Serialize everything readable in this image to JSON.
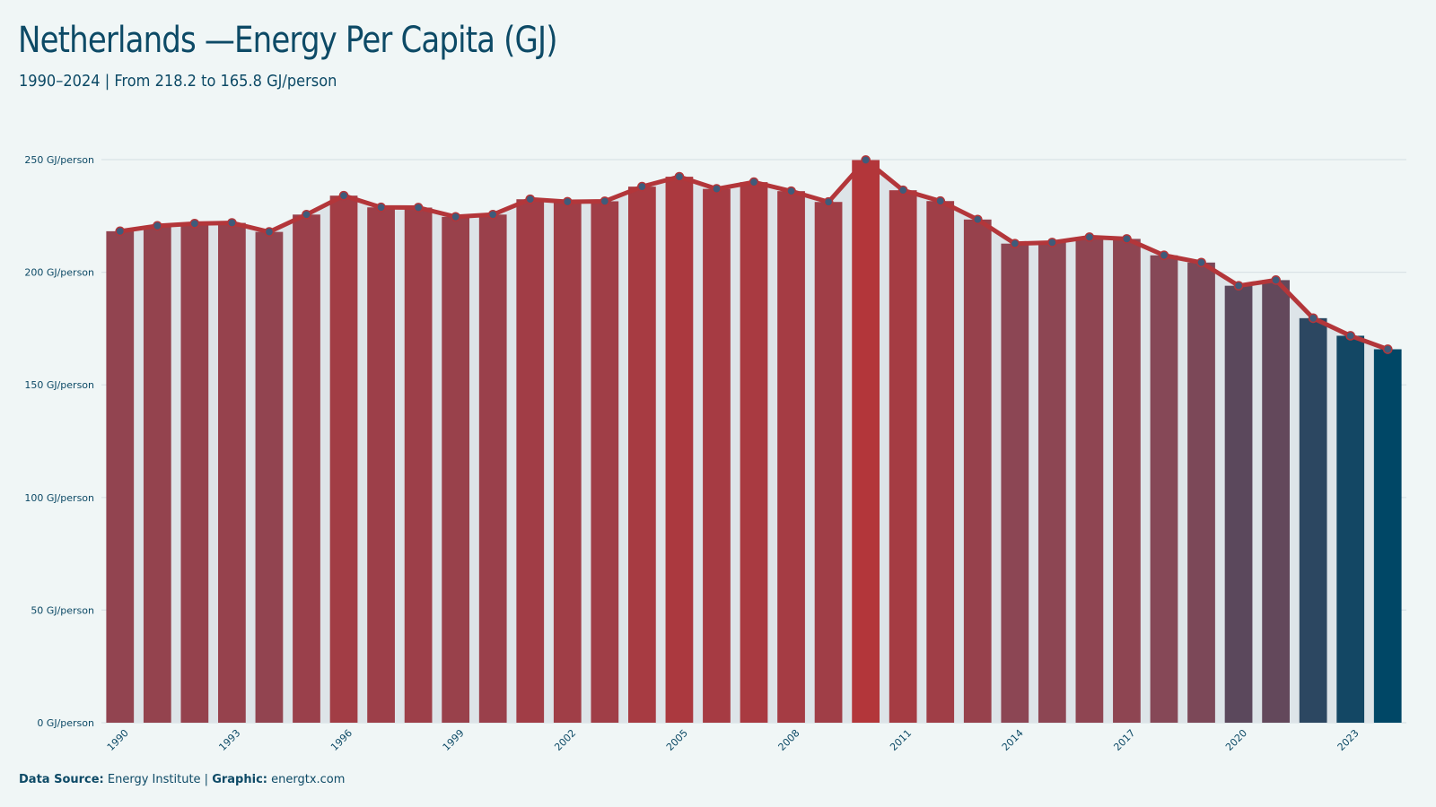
{
  "header": {
    "title": "Netherlands —Energy Per Capita (GJ)",
    "subtitle": "1990–2024 | From 218.2 to 165.8 GJ/person"
  },
  "footer": {
    "source_label": "Data Source:",
    "source_value": "Energy Institute |",
    "graphic_label": "Graphic:",
    "graphic_value": "energtx.com"
  },
  "colors": {
    "background": "#f0f6f6",
    "line": "#b3363a",
    "marker": "#3f5b7a",
    "bar_high": "#b3363a",
    "bar_low": "#004766",
    "bar_mid": "#874857",
    "text": "#0d4a66",
    "grid": "#d9e2e6",
    "band": "#dde4e8"
  },
  "chart_data": {
    "type": "bar",
    "ylim": [
      0,
      250
    ],
    "yticks": [
      0,
      50,
      100,
      150,
      200,
      250
    ],
    "ytick_suffix": " GJ/person",
    "grid": true,
    "x": [
      1990,
      1991,
      1992,
      1993,
      1994,
      1995,
      1996,
      1997,
      1998,
      1999,
      2000,
      2001,
      2002,
      2003,
      2004,
      2005,
      2006,
      2007,
      2008,
      2009,
      2010,
      2011,
      2012,
      2013,
      2014,
      2015,
      2016,
      2017,
      2018,
      2019,
      2020,
      2021,
      2022,
      2023,
      2024
    ],
    "xtick_labels": [
      "1990",
      "1993",
      "1996",
      "1999",
      "2002",
      "2005",
      "2008",
      "2011",
      "2014",
      "2017",
      "2020",
      "2023"
    ],
    "values": [
      218.2,
      220.6,
      221.6,
      221.9,
      217.9,
      225.6,
      234.0,
      228.8,
      228.7,
      224.6,
      225.6,
      232.4,
      231.3,
      231.5,
      238.0,
      242.4,
      237.0,
      240.0,
      236.0,
      231.2,
      249.8,
      236.4,
      231.6,
      223.4,
      212.7,
      213.2,
      215.6,
      214.8,
      207.5,
      204.3,
      194.0,
      196.5,
      179.6,
      171.8,
      165.8
    ],
    "overlay": "line-with-markers"
  }
}
